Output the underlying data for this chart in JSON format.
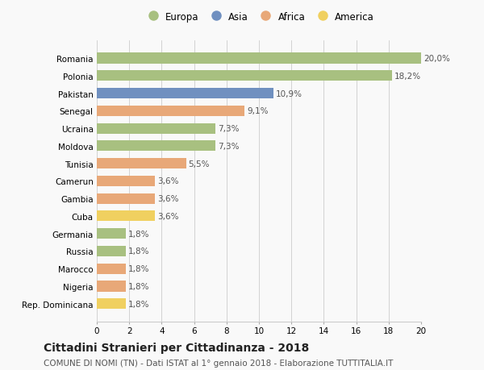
{
  "categories": [
    "Rep. Dominicana",
    "Nigeria",
    "Marocco",
    "Russia",
    "Germania",
    "Cuba",
    "Gambia",
    "Camerun",
    "Tunisia",
    "Moldova",
    "Ucraina",
    "Senegal",
    "Pakistan",
    "Polonia",
    "Romania"
  ],
  "values": [
    1.8,
    1.8,
    1.8,
    1.8,
    1.8,
    3.6,
    3.6,
    3.6,
    5.5,
    7.3,
    7.3,
    9.1,
    10.9,
    18.2,
    20.0
  ],
  "labels": [
    "1,8%",
    "1,8%",
    "1,8%",
    "1,8%",
    "1,8%",
    "3,6%",
    "3,6%",
    "3,6%",
    "5,5%",
    "7,3%",
    "7,3%",
    "9,1%",
    "10,9%",
    "18,2%",
    "20,0%"
  ],
  "continents": [
    "America",
    "Africa",
    "Africa",
    "Europa",
    "Europa",
    "America",
    "Africa",
    "Africa",
    "Africa",
    "Europa",
    "Europa",
    "Africa",
    "Asia",
    "Europa",
    "Europa"
  ],
  "colors": {
    "Europa": "#a8c080",
    "Asia": "#7090c0",
    "Africa": "#e8a878",
    "America": "#f0d060"
  },
  "legend_order": [
    "Europa",
    "Asia",
    "Africa",
    "America"
  ],
  "title": "Cittadini Stranieri per Cittadinanza - 2018",
  "subtitle": "COMUNE DI NOMI (TN) - Dati ISTAT al 1° gennaio 2018 - Elaborazione TUTTITALIA.IT",
  "xlim": [
    0,
    20
  ],
  "xticks": [
    0,
    2,
    4,
    6,
    8,
    10,
    12,
    14,
    16,
    18,
    20
  ],
  "background_color": "#f9f9f9",
  "bar_height": 0.6,
  "title_fontsize": 10,
  "subtitle_fontsize": 7.5,
  "tick_fontsize": 7.5,
  "label_fontsize": 7.5,
  "legend_fontsize": 8.5
}
